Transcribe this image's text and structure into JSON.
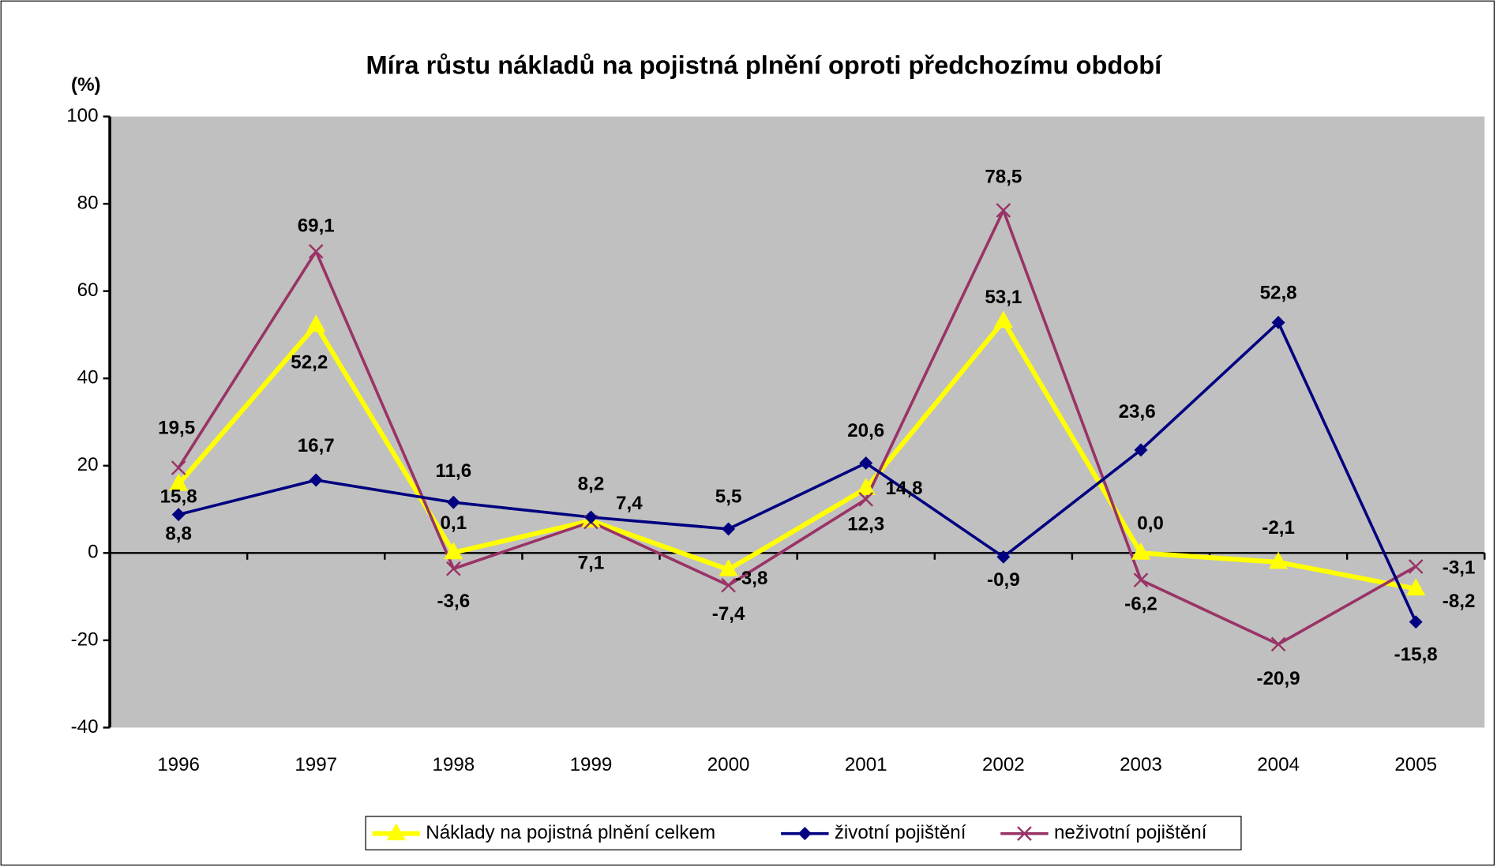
{
  "chart_data": {
    "type": "line",
    "title": "Míra růstu nákladů na pojistná plnění oproti předchozímu období",
    "ylabel": "(%)",
    "categories": [
      "1996",
      "1997",
      "1998",
      "1999",
      "2000",
      "2001",
      "2002",
      "2003",
      "2004",
      "2005"
    ],
    "series": [
      {
        "name": "Náklady na pojistná plnění celkem",
        "color": "#ffff00",
        "marker": "triangle",
        "values": [
          15.8,
          52.2,
          0.1,
          7.4,
          -3.8,
          14.8,
          53.1,
          0.0,
          -2.1,
          -8.2
        ],
        "value_labels": [
          "15,8",
          "52,2",
          "0,1",
          "7,4",
          "-3,8",
          "14,8",
          "53,1",
          "0,0",
          "-2,1",
          "-8,2"
        ]
      },
      {
        "name": "životní pojištění",
        "color": "#000080",
        "marker": "diamond",
        "values": [
          8.8,
          16.7,
          11.6,
          8.2,
          5.5,
          20.6,
          -0.9,
          23.6,
          52.8,
          -15.8
        ],
        "value_labels": [
          "8,8",
          "16,7",
          "11,6",
          "8,2",
          "5,5",
          "20,6",
          "-0,9",
          "23,6",
          "52,8",
          "-15,8"
        ]
      },
      {
        "name": "neživotní pojištění",
        "color": "#993366",
        "marker": "x",
        "values": [
          19.5,
          69.1,
          -3.6,
          7.1,
          -7.4,
          12.3,
          78.5,
          -6.2,
          -20.9,
          -3.1
        ],
        "value_labels": [
          "19,5",
          "69,1",
          "-3,6",
          "7,1",
          "-7,4",
          "12,3",
          "78,5",
          "-6,2",
          "-20,9",
          "-3,1"
        ]
      }
    ],
    "ylim": [
      -40,
      100
    ],
    "yticks": [
      -40,
      -20,
      0,
      20,
      40,
      60,
      80,
      100
    ],
    "plot_background": "#c0c0c0",
    "legend": "bottom"
  }
}
